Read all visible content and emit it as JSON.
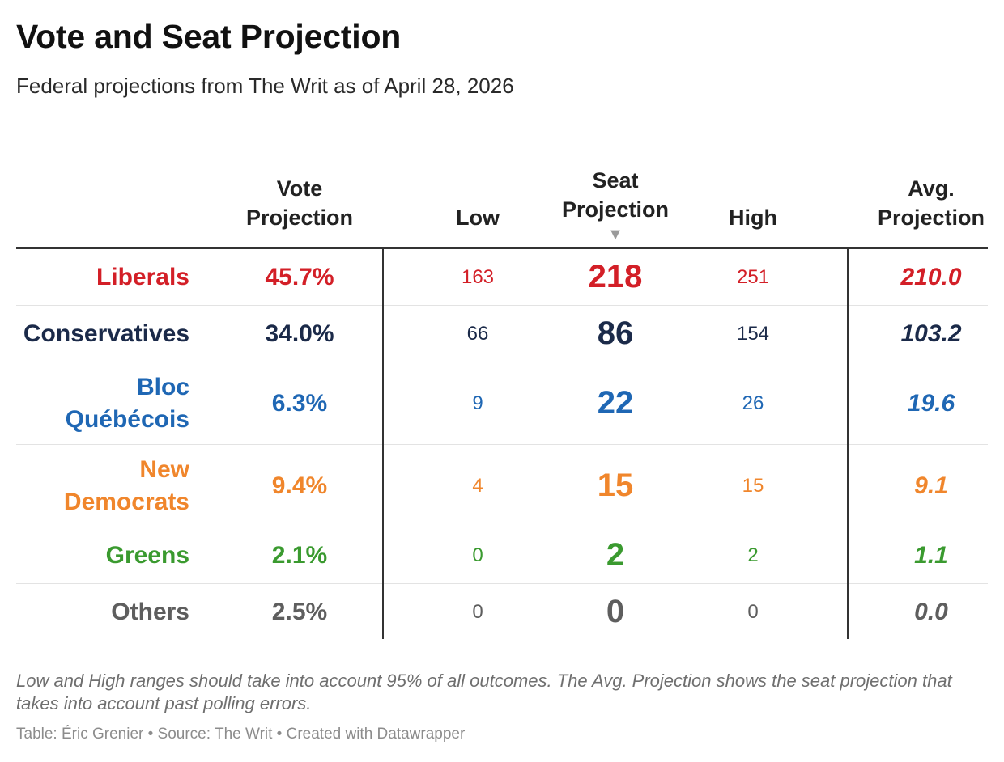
{
  "title": "Vote and Seat Projection",
  "subtitle": "Federal projections from The Writ as of April 28, 2026",
  "headers": {
    "party": "",
    "vote_line1": "Vote",
    "vote_line2": "Projection",
    "low": "Low",
    "seat_line1": "Seat",
    "seat_line2": "Projection",
    "sort_icon": "▼",
    "high": "High",
    "avg_line1": "Avg.",
    "avg_line2": "Projection"
  },
  "chart_data": {
    "type": "table",
    "title": "Vote and Seat Projection",
    "subtitle": "Federal projections from The Writ as of April 28, 2026",
    "columns": [
      "Vote Projection",
      "Low",
      "Seat Projection",
      "High",
      "Avg. Projection"
    ],
    "sorted_by": "Seat Projection",
    "sort_order": "descending",
    "rows": [
      {
        "party_line1": "Liberals",
        "party_line2": "",
        "color": "#d31f27",
        "vote": "45.7%",
        "low": "163",
        "seat": "218",
        "high": "251",
        "avg": "210.0",
        "tall": false
      },
      {
        "party_line1": "Conservatives",
        "party_line2": "",
        "color": "#1b2a49",
        "vote": "34.0%",
        "low": "66",
        "seat": "86",
        "high": "154",
        "avg": "103.2",
        "tall": false
      },
      {
        "party_line1": "Bloc",
        "party_line2": "Québécois",
        "color": "#1f67b4",
        "vote": "6.3%",
        "low": "9",
        "seat": "22",
        "high": "26",
        "avg": "19.6",
        "tall": true
      },
      {
        "party_line1": "New",
        "party_line2": "Democrats",
        "color": "#f0862c",
        "vote": "9.4%",
        "low": "4",
        "seat": "15",
        "high": "15",
        "avg": "9.1",
        "tall": true
      },
      {
        "party_line1": "Greens",
        "party_line2": "",
        "color": "#3a9a2f",
        "vote": "2.1%",
        "low": "0",
        "seat": "2",
        "high": "2",
        "avg": "1.1",
        "tall": false
      },
      {
        "party_line1": "Others",
        "party_line2": "",
        "color": "#5e5e5e",
        "vote": "2.5%",
        "low": "0",
        "seat": "0",
        "high": "0",
        "avg": "0.0",
        "tall": false
      }
    ]
  },
  "notes": "Low and High ranges should take into account 95% of all outcomes. The Avg. Projection shows the seat projection that takes into account past polling errors.",
  "credit": "Table: Éric Grenier • Source: The Writ • Created with Datawrapper"
}
